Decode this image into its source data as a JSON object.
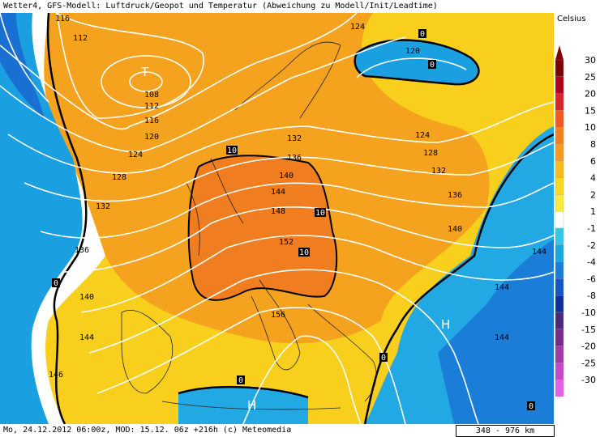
{
  "header": {
    "title": "Wetter4, GFS-Modell: Luftdruck/Geopot und Temperatur (Abweichung zu Modell/Init/Leadtime)"
  },
  "footer": {
    "info": "Mo, 24.12.2012 06:00z, MOD: 15.12. 06z +216h (c) Meteomedia",
    "scale": "348 - 976 km"
  },
  "legend": {
    "unit": "Celsius",
    "labels": [
      "30",
      "25",
      "20",
      "15",
      "10",
      "8",
      "6",
      "4",
      "2",
      "1",
      "-1",
      "-2",
      "-4",
      "-6",
      "-8",
      "-10",
      "-15",
      "-20",
      "-25",
      "-30"
    ],
    "colors": [
      "#7f0000",
      "#b2001a",
      "#d8262a",
      "#f05a1e",
      "#f47f1e",
      "#f59a1e",
      "#f6bb1c",
      "#f9d81e",
      "#fbea3a",
      "#ffffff",
      "#33c7e8",
      "#19a7e0",
      "#1a7ed8",
      "#1655c8",
      "#0d2fa0",
      "#4a2a7a",
      "#7a2a8a",
      "#a23aa8",
      "#c848c4",
      "#e860e4"
    ]
  },
  "map": {
    "isohypse_labels": [
      "116",
      "112",
      "108",
      "112",
      "116",
      "120",
      "124",
      "128",
      "132",
      "136",
      "140",
      "144",
      "146",
      "124",
      "120",
      "124",
      "128",
      "132",
      "132",
      "136",
      "140",
      "144",
      "148",
      "152",
      "156",
      "136",
      "140",
      "144",
      "144",
      "144"
    ],
    "box_labels": [
      "0",
      "0",
      "0",
      "10",
      "10",
      "10",
      "0",
      "0",
      "0"
    ],
    "pressure_labels": [
      "T",
      "H",
      "H"
    ]
  }
}
